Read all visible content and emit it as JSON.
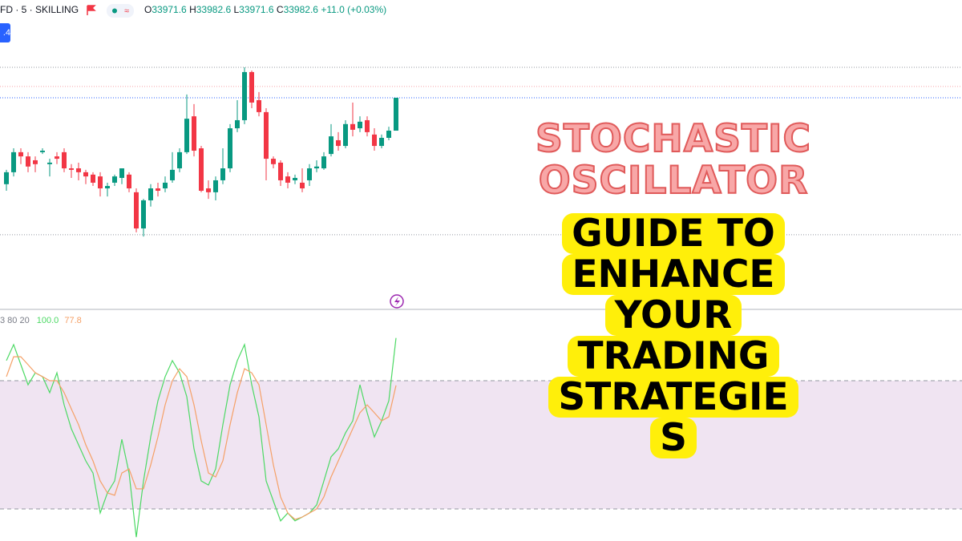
{
  "header": {
    "symbol": "FD · 5 · SKILLING",
    "ohlc": [
      {
        "key": "O",
        "value": "33971.6"
      },
      {
        "key": "H",
        "value": "33982.6"
      },
      {
        "key": "L",
        "value": "33971.6"
      },
      {
        "key": "C",
        "value": "33982.6"
      }
    ],
    "change": "+11.0 (+0.03%)",
    "badge": ".4",
    "indicator_params": "3 80 20",
    "k_label": "100.0",
    "d_label": "77.8"
  },
  "overlay": {
    "title_lines": [
      "STOCHASTIC",
      "OSCILLATOR"
    ],
    "subtitle_lines": [
      "GUIDE TO",
      "ENHANCE",
      "YOUR",
      "TRADING",
      "STRATEGIE",
      "S"
    ]
  },
  "chart_data": [
    {
      "type": "candlestick",
      "up_color": "#089981",
      "down_color": "#f23645",
      "ylim": [
        33912.1,
        34015.3
      ],
      "price_lines": [
        {
          "value": 33992.8,
          "color": "#9598a1"
        },
        {
          "value": 33986.4,
          "color": "#f7a1a8"
        },
        {
          "value": 33982.6,
          "color": "#2962ff"
        },
        {
          "value": 33936.8,
          "color": "#9598a1"
        }
      ],
      "ohlc": [
        [
          33953.7,
          33958.5,
          33951.5,
          33957.7
        ],
        [
          33957.7,
          33965.7,
          33956.3,
          33964.4
        ],
        [
          33964.4,
          33965.7,
          33960.4,
          33963.0
        ],
        [
          33963.0,
          33964.4,
          33957.7,
          33959.6
        ],
        [
          33961.7,
          33963.0,
          33957.7,
          33960.4
        ],
        [
          33964.4,
          33965.7,
          33963.8,
          33964.9
        ],
        [
          33960.4,
          33962.2,
          33956.3,
          33960.9
        ],
        [
          33963.0,
          33964.4,
          33960.4,
          33962.2
        ],
        [
          33964.4,
          33965.7,
          33957.7,
          33959.0
        ],
        [
          33959.0,
          33960.4,
          33955.8,
          33958.5
        ],
        [
          33959.0,
          33960.9,
          33955.0,
          33957.7
        ],
        [
          33957.7,
          33958.5,
          33953.7,
          33956.3
        ],
        [
          33956.9,
          33957.7,
          33953.1,
          33954.2
        ],
        [
          33956.3,
          33957.7,
          33949.6,
          33952.3
        ],
        [
          33952.3,
          33954.2,
          33949.6,
          33953.1
        ],
        [
          33954.2,
          33956.9,
          33953.1,
          33956.3
        ],
        [
          33955.8,
          33959.0,
          33953.7,
          33959.0
        ],
        [
          33956.9,
          33957.7,
          33951.0,
          33952.3
        ],
        [
          33951.0,
          33952.3,
          33937.6,
          33938.9
        ],
        [
          33938.9,
          33948.8,
          33936.2,
          33948.3
        ],
        [
          33948.3,
          33953.7,
          33946.2,
          33952.3
        ],
        [
          33952.3,
          33954.2,
          33949.6,
          33951.5
        ],
        [
          33952.3,
          33956.3,
          33951.0,
          33954.2
        ],
        [
          33955.0,
          33964.4,
          33954.2,
          33958.5
        ],
        [
          33959.0,
          33965.7,
          33957.7,
          33964.4
        ],
        [
          33964.4,
          33983.7,
          33963.8,
          33975.6
        ],
        [
          33976.4,
          33980.5,
          33963.0,
          33964.9
        ],
        [
          33965.7,
          33966.5,
          33951.0,
          33951.5
        ],
        [
          33952.3,
          33955.0,
          33948.8,
          33951.0
        ],
        [
          33951.0,
          33956.3,
          33948.3,
          33955.0
        ],
        [
          33955.0,
          33965.7,
          33953.7,
          33959.0
        ],
        [
          33959.0,
          33973.8,
          33957.7,
          33972.4
        ],
        [
          33972.4,
          33981.8,
          33971.1,
          33975.1
        ],
        [
          33975.1,
          33992.8,
          33973.8,
          33991.2
        ],
        [
          33991.2,
          33991.7,
          33979.1,
          33981.0
        ],
        [
          33981.8,
          33984.5,
          33976.4,
          33977.8
        ],
        [
          33977.8,
          33979.1,
          33955.0,
          33962.2
        ],
        [
          33962.2,
          33963.0,
          33959.0,
          33960.4
        ],
        [
          33960.9,
          33961.7,
          33953.1,
          33955.0
        ],
        [
          33956.3,
          33957.7,
          33952.3,
          33954.2
        ],
        [
          33955.0,
          33956.9,
          33953.7,
          33955.8
        ],
        [
          33954.2,
          33959.0,
          33951.0,
          33952.3
        ],
        [
          33955.0,
          33960.4,
          33953.1,
          33959.0
        ],
        [
          33959.0,
          33961.7,
          33957.7,
          33959.6
        ],
        [
          33959.0,
          33964.4,
          33958.5,
          33963.0
        ],
        [
          33963.8,
          33973.8,
          33963.0,
          33969.7
        ],
        [
          33968.4,
          33971.1,
          33964.9,
          33966.5
        ],
        [
          33966.5,
          33975.1,
          33965.7,
          33973.8
        ],
        [
          33973.8,
          33981.0,
          33969.7,
          33971.9
        ],
        [
          33972.4,
          33976.4,
          33971.1,
          33974.6
        ],
        [
          33975.1,
          33976.4,
          33969.7,
          33971.1
        ],
        [
          33970.3,
          33972.4,
          33964.9,
          33966.5
        ],
        [
          33966.5,
          33970.3,
          33965.7,
          33969.2
        ],
        [
          33969.2,
          33972.9,
          33968.4,
          33971.6
        ],
        [
          33971.6,
          33982.6,
          33971.6,
          33982.6
        ]
      ]
    },
    {
      "type": "line",
      "ylim": [
        5,
        113
      ],
      "bands": [
        80,
        20
      ],
      "band_fill": "#f0e4f2",
      "series": [
        {
          "color": "#4cd964",
          "values": [
            89.4,
            96.9,
            87.5,
            78.1,
            83.7,
            81.9,
            74.4,
            83.7,
            68.7,
            57.5,
            50.0,
            42.5,
            36.8,
            18.1,
            27.5,
            33.1,
            52.6,
            36.8,
            6.8,
            33.1,
            53.7,
            70.6,
            81.9,
            89.4,
            83.7,
            72.5,
            48.1,
            33.1,
            31.2,
            38.7,
            59.4,
            78.1,
            89.4,
            96.9,
            78.1,
            63.1,
            33.1,
            23.7,
            14.4,
            18.1,
            14.4,
            16.2,
            18.1,
            21.9,
            33.1,
            44.4,
            48.1,
            55.6,
            61.2,
            78.1,
            65.0,
            53.7,
            61.2,
            70.6,
            100.0
          ]
        },
        {
          "color": "#f5a067",
          "values": [
            81.9,
            91.2,
            91.2,
            87.5,
            83.7,
            81.9,
            80.0,
            80.0,
            74.4,
            66.8,
            59.4,
            50.0,
            42.5,
            33.1,
            27.5,
            26.4,
            36.8,
            38.7,
            29.4,
            29.4,
            40.6,
            53.7,
            68.7,
            80.0,
            85.6,
            81.9,
            68.7,
            51.9,
            36.8,
            35.0,
            42.5,
            59.4,
            74.4,
            85.6,
            83.7,
            78.1,
            59.4,
            40.6,
            25.6,
            18.1,
            15.1,
            16.2,
            18.1,
            20.0,
            25.6,
            35.0,
            42.5,
            50.0,
            57.5,
            65.0,
            68.7,
            65.0,
            61.2,
            63.1,
            77.8
          ]
        }
      ]
    }
  ]
}
